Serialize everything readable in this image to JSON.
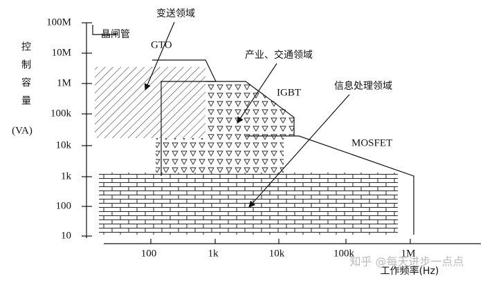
{
  "y_axis": {
    "title": "控制容量",
    "unit": "(VA)",
    "ticks": [
      "100M",
      "10M",
      "1M",
      "100k",
      "10k",
      "1k",
      "100",
      "10"
    ]
  },
  "x_axis": {
    "title": "工作频率(Hz)",
    "ticks": [
      "100",
      "1k",
      "10k",
      "100k",
      "1M"
    ]
  },
  "labels": {
    "thyristor": "晶闸管",
    "gto": "GTO",
    "igbt": "IGBT",
    "mosfet": "MOSFET"
  },
  "annotations": {
    "transmission": "变送领域",
    "industry": "产业、交通领域",
    "information": "信息处理领域"
  },
  "watermark": "知乎 @每天进步一点点"
}
